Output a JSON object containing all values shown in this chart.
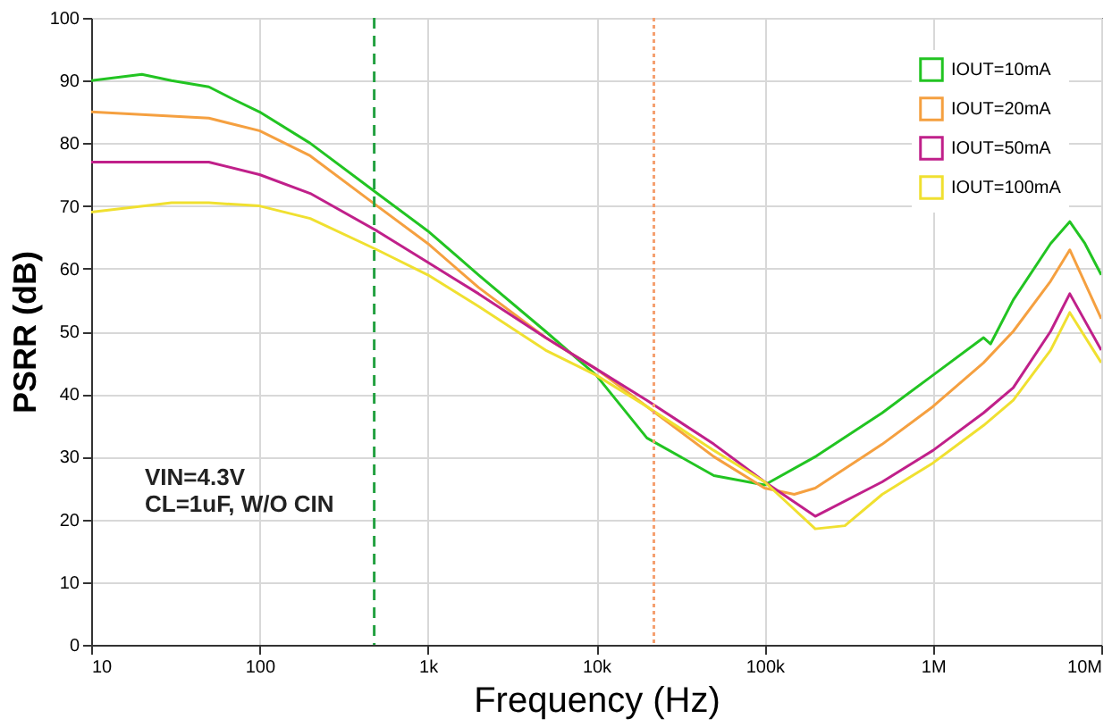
{
  "chart_data": {
    "type": "line",
    "xlabel": "Frequency (Hz)",
    "ylabel": "PSRR (dB)",
    "log": "x",
    "xlim": [
      10,
      10000000
    ],
    "xticks": [
      10,
      100,
      {
        "value": 1000,
        "label": "1k"
      },
      {
        "value": 10000,
        "label": "10k"
      },
      {
        "value": 100000,
        "label": "100k"
      },
      {
        "value": 1000000,
        "label": "1M"
      },
      {
        "value": 10000000,
        "label": "10M"
      }
    ],
    "ylim": [
      0,
      100
    ],
    "yticks": [
      0,
      10,
      20,
      30,
      40,
      50,
      60,
      70,
      80,
      90,
      100
    ],
    "grid": true,
    "legend": "top right",
    "marker": "none",
    "line_style": "solid",
    "series": [
      {
        "name": "IOUT=10mA",
        "color": "#22c422",
        "x": [
          10,
          20,
          30,
          50,
          70,
          100,
          200,
          500,
          1000,
          2000,
          5000,
          10000,
          20000,
          50000,
          100000,
          200000,
          500000,
          1000000,
          2000000,
          2200000,
          3000000,
          5000000,
          6500000,
          8000000,
          10000000
        ],
        "values": [
          90,
          91,
          90,
          89,
          87,
          85,
          80,
          72,
          66,
          59,
          50,
          43,
          33,
          27,
          25.5,
          30,
          37,
          43,
          49,
          48,
          55,
          64,
          67.5,
          64,
          59
        ]
      },
      {
        "name": "IOUT=20mA",
        "color": "#f5a040",
        "x": [
          10,
          50,
          100,
          200,
          500,
          1000,
          2000,
          5000,
          10000,
          20000,
          50000,
          100000,
          150000,
          200000,
          500000,
          1000000,
          2000000,
          3000000,
          5000000,
          6500000,
          10000000
        ],
        "values": [
          85,
          84,
          82,
          78,
          70,
          64,
          57,
          49,
          44,
          38,
          30,
          25,
          24,
          25,
          32,
          38,
          45,
          50,
          58,
          63,
          52
        ]
      },
      {
        "name": "IOUT=50mA",
        "color": "#c0208a",
        "x": [
          10,
          50,
          100,
          200,
          500,
          1000,
          2000,
          5000,
          10000,
          20000,
          50000,
          100000,
          200000,
          500000,
          1000000,
          2000000,
          3000000,
          5000000,
          6500000,
          10000000
        ],
        "values": [
          77,
          77,
          75,
          72,
          66,
          61,
          56,
          49,
          44,
          39,
          32,
          26,
          20.5,
          26,
          31,
          37,
          41,
          50,
          56,
          47
        ]
      },
      {
        "name": "IOUT=100mA",
        "color": "#f0e030",
        "x": [
          10,
          30,
          50,
          100,
          200,
          500,
          1000,
          2000,
          5000,
          10000,
          20000,
          50000,
          100000,
          200000,
          300000,
          500000,
          1000000,
          2000000,
          3000000,
          5000000,
          6500000,
          10000000
        ],
        "values": [
          69,
          70.5,
          70.5,
          70,
          68,
          63,
          59,
          54,
          47,
          43,
          38,
          31,
          26,
          18.5,
          19,
          24,
          29,
          35,
          39,
          47,
          53,
          45
        ]
      }
    ],
    "ref_lines": [
      {
        "axis": "x",
        "value": 480,
        "color": "#22a040",
        "line_style": "dashed"
      },
      {
        "axis": "x",
        "value": 22000,
        "color": "#f5a070",
        "line_style": "dotted"
      }
    ],
    "annotations": [
      "VIN=4.3V",
      "CL=1uF, W/O CIN"
    ]
  }
}
